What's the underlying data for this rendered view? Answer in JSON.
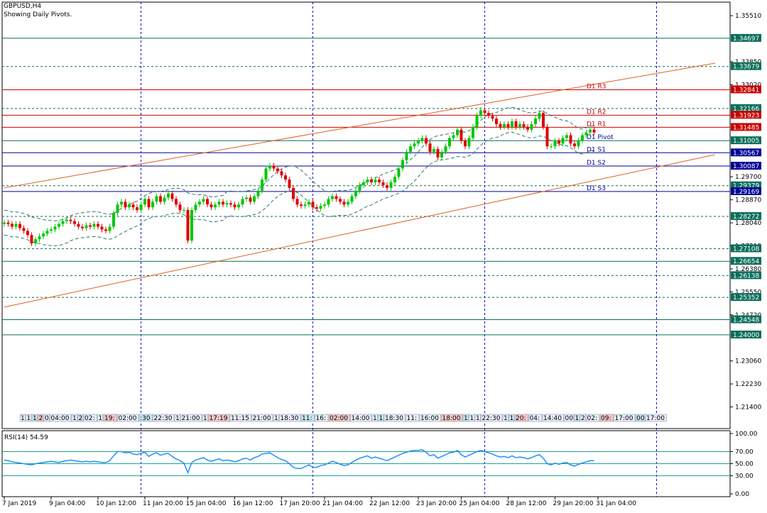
{
  "header": {
    "symbol": "GBPUSD,H4",
    "subtitle": "Showing Daily Pivots."
  },
  "colors": {
    "bull": "#00c800",
    "bear": "#e00000",
    "frame": "#000000",
    "vgrid": "#0000c8",
    "h_green": "#0a6e5a",
    "h_blue": "#000096",
    "h_red": "#c80000",
    "channel": "#e06020",
    "envelope": "#2a7a6a",
    "rsi_line": "#1e90ff",
    "rsi_level": "#20a090",
    "badge_green": "#0a6e5a",
    "badge_blue": "#000096",
    "badge_red": "#c80000"
  },
  "chart_data": [
    {
      "type": "candlestick",
      "title": "GBPUSD,H4",
      "ylim": [
        1.2062,
        1.36
      ],
      "price_ticks": [
        "1.35510",
        "1.33850",
        "1.33020",
        "1.29700",
        "1.28870",
        "1.28040",
        "1.27210",
        "1.26380",
        "1.25550",
        "1.24720",
        "1.23060",
        "1.22230",
        "1.21400"
      ],
      "levels": [
        {
          "value": 1.34697,
          "label": "1.34697",
          "style": "solid",
          "color": "green"
        },
        {
          "value": 1.33679,
          "label": "1.33679",
          "style": "dashed",
          "color": "green"
        },
        {
          "value": 1.32841,
          "label": "1.32841",
          "style": "solid",
          "color": "red",
          "name": "D1 R3"
        },
        {
          "value": 1.32166,
          "label": "1.32166",
          "style": "dashed",
          "color": "green"
        },
        {
          "value": 1.31923,
          "label": "1.31923",
          "style": "solid",
          "color": "red",
          "name": "D1 R2"
        },
        {
          "value": 1.31485,
          "label": "1.31485",
          "style": "solid",
          "color": "red",
          "name": "D1 R1"
        },
        {
          "value": 1.31005,
          "label": "1.31005",
          "style": "solid",
          "color": "green",
          "name": "D1 Pivot"
        },
        {
          "value": 1.30567,
          "label": "1.30567",
          "style": "solid",
          "color": "blue",
          "name": "D1 S1"
        },
        {
          "value": 1.30087,
          "label": "1.30087",
          "style": "solid",
          "color": "blue",
          "name": "D1 S2"
        },
        {
          "value": 1.29379,
          "label": "1.29379",
          "style": "dashed",
          "color": "green"
        },
        {
          "value": 1.29169,
          "label": "1.29169",
          "style": "solid",
          "color": "blue",
          "name": "D1 S3"
        },
        {
          "value": 1.28272,
          "label": "1.28272",
          "style": "dashed",
          "color": "green"
        },
        {
          "value": 1.27108,
          "label": "1.27108",
          "style": "dashed",
          "color": "green"
        },
        {
          "value": 1.26654,
          "label": "1.26654",
          "style": "solid",
          "color": "green"
        },
        {
          "value": 1.26138,
          "label": "1.26138",
          "style": "dashed",
          "color": "green"
        },
        {
          "value": 1.25352,
          "label": "1.25352",
          "style": "dashed",
          "color": "green"
        },
        {
          "value": 1.24548,
          "label": "1.24548",
          "style": "solid",
          "color": "green"
        },
        {
          "value": 1.24,
          "label": "1.24000",
          "style": "solid",
          "color": "green"
        }
      ],
      "channel": [
        {
          "from": [
            0,
            1.293
          ],
          "to": [
            182,
            1.338
          ]
        },
        {
          "from": [
            0,
            1.25
          ],
          "to": [
            182,
            1.305
          ]
        }
      ],
      "vgrid_bars": [
        35,
        79,
        123,
        167
      ],
      "x_time_labels": [
        "7 Jan 2019",
        "9 Jan 04:00",
        "10 Jan 12:00",
        "11 Jan 20:00",
        "15 Jan 04:00",
        "16 Jan 12:00",
        "17 Jan 20:00",
        "21 Jan 04:00",
        "22 Jan 12:00",
        "23 Jan 20:00",
        "25 Jan 04:00",
        "28 Jan 12:00",
        "29 Jan 20:00",
        "31 Jan 04:00"
      ],
      "x_time_label_bars": [
        0,
        12,
        24,
        36,
        47,
        59,
        71,
        82,
        94,
        106,
        117,
        129,
        141,
        152
      ],
      "event_labels": [
        "1",
        "1",
        "1",
        "2",
        "0",
        "04:00",
        "1",
        "2",
        "02:",
        "1",
        "19:",
        "02:00",
        ":30",
        "22:30",
        "1",
        "21:00",
        "1",
        "17:19",
        "11:15",
        "21:00",
        "1",
        "18:30",
        "11:",
        "16:",
        "02:00",
        "14:00",
        "1",
        "1",
        "18:30",
        "11:",
        "16:00",
        "18:00",
        "1",
        "1",
        "1",
        "22:30",
        "1",
        "1",
        "20:",
        "04:",
        "14:40",
        "00",
        "1",
        "2",
        "02:",
        "09:",
        "17:00",
        "00",
        "17:00",
        "00"
      ],
      "close": [
        1.2805,
        1.28,
        1.279,
        1.28,
        1.2785,
        1.2775,
        1.276,
        1.273,
        1.2745,
        1.2755,
        1.2765,
        1.2775,
        1.278,
        1.279,
        1.28,
        1.281,
        1.2815,
        1.281,
        1.28,
        1.279,
        1.2785,
        1.2795,
        1.279,
        1.28,
        1.279,
        1.278,
        1.2775,
        1.279,
        1.284,
        1.287,
        1.288,
        1.286,
        1.287,
        1.286,
        1.285,
        1.287,
        1.289,
        1.286,
        1.288,
        1.29,
        1.288,
        1.2895,
        1.291,
        1.289,
        1.287,
        1.285,
        1.285,
        1.274,
        1.285,
        1.287,
        1.288,
        1.289,
        1.287,
        1.286,
        1.287,
        1.288,
        1.287,
        1.2875,
        1.287,
        1.286,
        1.287,
        1.289,
        1.2895,
        1.288,
        1.29,
        1.292,
        1.296,
        1.3,
        1.301,
        1.3,
        1.299,
        1.2975,
        1.296,
        1.293,
        1.289,
        1.287,
        1.2865,
        1.287,
        1.288,
        1.286,
        1.2855,
        1.2865,
        1.287,
        1.289,
        1.29,
        1.289,
        1.288,
        1.287,
        1.288,
        1.29,
        1.292,
        1.294,
        1.295,
        1.296,
        1.295,
        1.296,
        1.295,
        1.294,
        1.293,
        1.295,
        1.297,
        1.3,
        1.303,
        1.306,
        1.308,
        1.309,
        1.31,
        1.311,
        1.309,
        1.306,
        1.307,
        1.304,
        1.306,
        1.308,
        1.311,
        1.312,
        1.314,
        1.31,
        1.308,
        1.311,
        1.315,
        1.319,
        1.321,
        1.32,
        1.319,
        1.318,
        1.316,
        1.315,
        1.316,
        1.315,
        1.317,
        1.315,
        1.316,
        1.315,
        1.314,
        1.316,
        1.318,
        1.32,
        1.315,
        1.308,
        1.308,
        1.31,
        1.309,
        1.311,
        1.312,
        1.309,
        1.308,
        1.31,
        1.312,
        1.313,
        1.314,
        1.313
      ]
    },
    {
      "type": "line",
      "title": "RSI(14) 54.59",
      "ylim": [
        0,
        100
      ],
      "y_ticks": [
        "100.00",
        "70.00",
        "50.00",
        "30.00",
        "0.00"
      ],
      "levels": [
        70,
        50,
        30
      ],
      "values": [
        56,
        55,
        53,
        52,
        51,
        50,
        49,
        48,
        50,
        51,
        52,
        53,
        54,
        53,
        52,
        54,
        55,
        56,
        55,
        54,
        53,
        54,
        53,
        54,
        53,
        52,
        52,
        55,
        63,
        70,
        70,
        68,
        69,
        66,
        65,
        67,
        69,
        62,
        66,
        68,
        64,
        66,
        67,
        62,
        58,
        55,
        51,
        35,
        52,
        56,
        58,
        60,
        56,
        54,
        56,
        58,
        55,
        56,
        55,
        53,
        55,
        58,
        59,
        56,
        60,
        62,
        66,
        67,
        68,
        64,
        60,
        57,
        55,
        50,
        44,
        42,
        42,
        45,
        48,
        44,
        44,
        47,
        48,
        51,
        54,
        52,
        49,
        47,
        48,
        52,
        56,
        59,
        61,
        63,
        59,
        61,
        59,
        57,
        55,
        58,
        61,
        64,
        67,
        69,
        71,
        72,
        72,
        73,
        69,
        63,
        65,
        59,
        62,
        65,
        68,
        69,
        72,
        65,
        61,
        64,
        67,
        70,
        72,
        70,
        68,
        66,
        63,
        61,
        62,
        60,
        63,
        60,
        61,
        60,
        58,
        60,
        63,
        65,
        59,
        50,
        48,
        51,
        49,
        51,
        52,
        48,
        46,
        49,
        51,
        53,
        55,
        55
      ]
    }
  ]
}
